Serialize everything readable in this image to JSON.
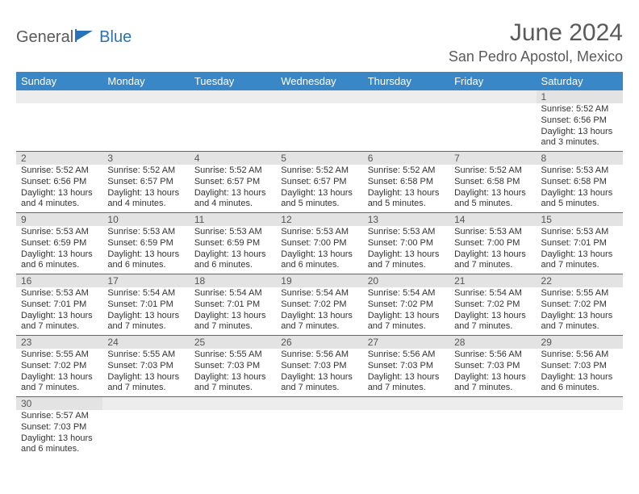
{
  "logo": {
    "text1": "General",
    "text2": "Blue"
  },
  "title": {
    "month_year": "June 2024",
    "location": "San Pedro Apostol, Mexico"
  },
  "colors": {
    "header_bg": "#3a87c8",
    "header_text": "#ffffff",
    "daynum_bg": "#e3e3e3",
    "daynum_empty_bg": "#ededed",
    "row_divider": "#2a72b5",
    "body_text": "#333333",
    "title_text": "#5a5a5a",
    "logo_blue": "#2a72b5",
    "logo_gray": "#5a5a5a"
  },
  "day_headers": [
    "Sunday",
    "Monday",
    "Tuesday",
    "Wednesday",
    "Thursday",
    "Friday",
    "Saturday"
  ],
  "weeks": [
    [
      {
        "day": "",
        "sunrise": "",
        "sunset": "",
        "daylight": ""
      },
      {
        "day": "",
        "sunrise": "",
        "sunset": "",
        "daylight": ""
      },
      {
        "day": "",
        "sunrise": "",
        "sunset": "",
        "daylight": ""
      },
      {
        "day": "",
        "sunrise": "",
        "sunset": "",
        "daylight": ""
      },
      {
        "day": "",
        "sunrise": "",
        "sunset": "",
        "daylight": ""
      },
      {
        "day": "",
        "sunrise": "",
        "sunset": "",
        "daylight": ""
      },
      {
        "day": "1",
        "sunrise": "Sunrise: 5:52 AM",
        "sunset": "Sunset: 6:56 PM",
        "daylight": "Daylight: 13 hours and 3 minutes."
      }
    ],
    [
      {
        "day": "2",
        "sunrise": "Sunrise: 5:52 AM",
        "sunset": "Sunset: 6:56 PM",
        "daylight": "Daylight: 13 hours and 4 minutes."
      },
      {
        "day": "3",
        "sunrise": "Sunrise: 5:52 AM",
        "sunset": "Sunset: 6:57 PM",
        "daylight": "Daylight: 13 hours and 4 minutes."
      },
      {
        "day": "4",
        "sunrise": "Sunrise: 5:52 AM",
        "sunset": "Sunset: 6:57 PM",
        "daylight": "Daylight: 13 hours and 4 minutes."
      },
      {
        "day": "5",
        "sunrise": "Sunrise: 5:52 AM",
        "sunset": "Sunset: 6:57 PM",
        "daylight": "Daylight: 13 hours and 5 minutes."
      },
      {
        "day": "6",
        "sunrise": "Sunrise: 5:52 AM",
        "sunset": "Sunset: 6:58 PM",
        "daylight": "Daylight: 13 hours and 5 minutes."
      },
      {
        "day": "7",
        "sunrise": "Sunrise: 5:52 AM",
        "sunset": "Sunset: 6:58 PM",
        "daylight": "Daylight: 13 hours and 5 minutes."
      },
      {
        "day": "8",
        "sunrise": "Sunrise: 5:53 AM",
        "sunset": "Sunset: 6:58 PM",
        "daylight": "Daylight: 13 hours and 5 minutes."
      }
    ],
    [
      {
        "day": "9",
        "sunrise": "Sunrise: 5:53 AM",
        "sunset": "Sunset: 6:59 PM",
        "daylight": "Daylight: 13 hours and 6 minutes."
      },
      {
        "day": "10",
        "sunrise": "Sunrise: 5:53 AM",
        "sunset": "Sunset: 6:59 PM",
        "daylight": "Daylight: 13 hours and 6 minutes."
      },
      {
        "day": "11",
        "sunrise": "Sunrise: 5:53 AM",
        "sunset": "Sunset: 6:59 PM",
        "daylight": "Daylight: 13 hours and 6 minutes."
      },
      {
        "day": "12",
        "sunrise": "Sunrise: 5:53 AM",
        "sunset": "Sunset: 7:00 PM",
        "daylight": "Daylight: 13 hours and 6 minutes."
      },
      {
        "day": "13",
        "sunrise": "Sunrise: 5:53 AM",
        "sunset": "Sunset: 7:00 PM",
        "daylight": "Daylight: 13 hours and 7 minutes."
      },
      {
        "day": "14",
        "sunrise": "Sunrise: 5:53 AM",
        "sunset": "Sunset: 7:00 PM",
        "daylight": "Daylight: 13 hours and 7 minutes."
      },
      {
        "day": "15",
        "sunrise": "Sunrise: 5:53 AM",
        "sunset": "Sunset: 7:01 PM",
        "daylight": "Daylight: 13 hours and 7 minutes."
      }
    ],
    [
      {
        "day": "16",
        "sunrise": "Sunrise: 5:53 AM",
        "sunset": "Sunset: 7:01 PM",
        "daylight": "Daylight: 13 hours and 7 minutes."
      },
      {
        "day": "17",
        "sunrise": "Sunrise: 5:54 AM",
        "sunset": "Sunset: 7:01 PM",
        "daylight": "Daylight: 13 hours and 7 minutes."
      },
      {
        "day": "18",
        "sunrise": "Sunrise: 5:54 AM",
        "sunset": "Sunset: 7:01 PM",
        "daylight": "Daylight: 13 hours and 7 minutes."
      },
      {
        "day": "19",
        "sunrise": "Sunrise: 5:54 AM",
        "sunset": "Sunset: 7:02 PM",
        "daylight": "Daylight: 13 hours and 7 minutes."
      },
      {
        "day": "20",
        "sunrise": "Sunrise: 5:54 AM",
        "sunset": "Sunset: 7:02 PM",
        "daylight": "Daylight: 13 hours and 7 minutes."
      },
      {
        "day": "21",
        "sunrise": "Sunrise: 5:54 AM",
        "sunset": "Sunset: 7:02 PM",
        "daylight": "Daylight: 13 hours and 7 minutes."
      },
      {
        "day": "22",
        "sunrise": "Sunrise: 5:55 AM",
        "sunset": "Sunset: 7:02 PM",
        "daylight": "Daylight: 13 hours and 7 minutes."
      }
    ],
    [
      {
        "day": "23",
        "sunrise": "Sunrise: 5:55 AM",
        "sunset": "Sunset: 7:02 PM",
        "daylight": "Daylight: 13 hours and 7 minutes."
      },
      {
        "day": "24",
        "sunrise": "Sunrise: 5:55 AM",
        "sunset": "Sunset: 7:03 PM",
        "daylight": "Daylight: 13 hours and 7 minutes."
      },
      {
        "day": "25",
        "sunrise": "Sunrise: 5:55 AM",
        "sunset": "Sunset: 7:03 PM",
        "daylight": "Daylight: 13 hours and 7 minutes."
      },
      {
        "day": "26",
        "sunrise": "Sunrise: 5:56 AM",
        "sunset": "Sunset: 7:03 PM",
        "daylight": "Daylight: 13 hours and 7 minutes."
      },
      {
        "day": "27",
        "sunrise": "Sunrise: 5:56 AM",
        "sunset": "Sunset: 7:03 PM",
        "daylight": "Daylight: 13 hours and 7 minutes."
      },
      {
        "day": "28",
        "sunrise": "Sunrise: 5:56 AM",
        "sunset": "Sunset: 7:03 PM",
        "daylight": "Daylight: 13 hours and 7 minutes."
      },
      {
        "day": "29",
        "sunrise": "Sunrise: 5:56 AM",
        "sunset": "Sunset: 7:03 PM",
        "daylight": "Daylight: 13 hours and 6 minutes."
      }
    ],
    [
      {
        "day": "30",
        "sunrise": "Sunrise: 5:57 AM",
        "sunset": "Sunset: 7:03 PM",
        "daylight": "Daylight: 13 hours and 6 minutes."
      },
      {
        "day": "",
        "sunrise": "",
        "sunset": "",
        "daylight": ""
      },
      {
        "day": "",
        "sunrise": "",
        "sunset": "",
        "daylight": ""
      },
      {
        "day": "",
        "sunrise": "",
        "sunset": "",
        "daylight": ""
      },
      {
        "day": "",
        "sunrise": "",
        "sunset": "",
        "daylight": ""
      },
      {
        "day": "",
        "sunrise": "",
        "sunset": "",
        "daylight": ""
      },
      {
        "day": "",
        "sunrise": "",
        "sunset": "",
        "daylight": ""
      }
    ]
  ]
}
